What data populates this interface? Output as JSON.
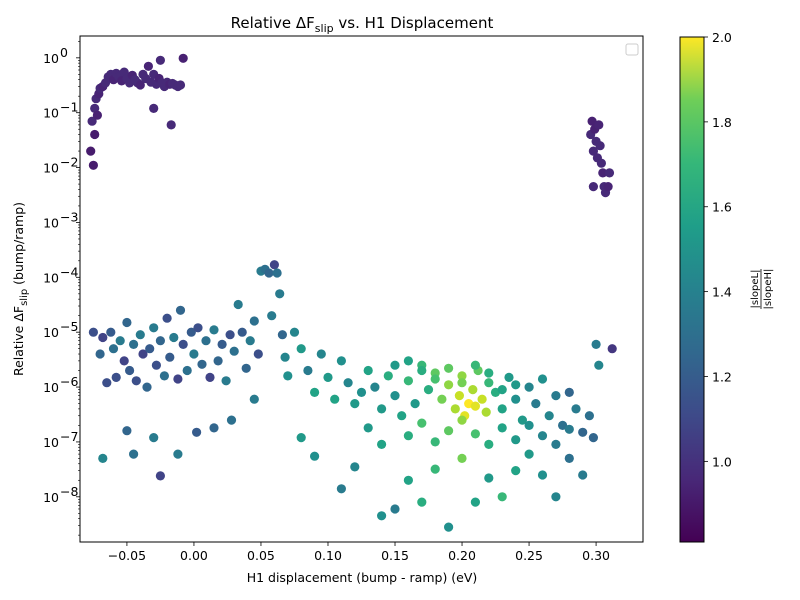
{
  "chart_data": {
    "type": "scatter",
    "title": {
      "prefix": "Relative ΔF",
      "sub": "slip",
      "suffix": " vs. H1 Displacement"
    },
    "xlabel": "H1 displacement (bump - ramp) (eV)",
    "ylabel": {
      "prefix": "Relative ΔF",
      "sub": "slip",
      "suffix": " (bump/ramp)"
    },
    "xlim": [
      -0.085,
      0.335
    ],
    "ylim": [
      1.5e-09,
      2.5
    ],
    "yscale": "log",
    "x_ticks": [
      -0.05,
      0.0,
      0.05,
      0.1,
      0.15,
      0.2,
      0.25,
      0.3
    ],
    "x_tick_labels": [
      "−0.05",
      "0.00",
      "0.05",
      "0.10",
      "0.15",
      "0.20",
      "0.25",
      "0.30"
    ],
    "y_tick_exponents": [
      -8,
      -7,
      -6,
      -5,
      -4,
      -3,
      -2,
      -1,
      0
    ],
    "y_tick_labels": [
      "10",
      "10",
      "10",
      "10",
      "10",
      "10",
      "10",
      "10",
      "10"
    ],
    "y_tick_label_exponents": [
      "−8",
      "−7",
      "−6",
      "−5",
      "−4",
      "−3",
      "−2",
      "−1",
      "0"
    ],
    "legend": {
      "placement": "upper-right",
      "entries": []
    },
    "colorbar": {
      "colormap": "viridis",
      "range": [
        0.81,
        2.0
      ],
      "ticks": [
        1.0,
        1.2,
        1.4,
        1.6,
        1.8,
        2.0
      ],
      "tick_labels": [
        "1.0",
        "1.2",
        "1.4",
        "1.6",
        "1.8",
        "2.0"
      ],
      "label_numerator": "|slopeL|",
      "label_denominator": "|slopeH|"
    },
    "series": [
      {
        "points": [
          [
            -0.077,
            0.02,
            0.9
          ],
          [
            -0.076,
            0.07,
            0.95
          ],
          [
            -0.075,
            0.011,
            0.9
          ],
          [
            -0.074,
            0.04,
            0.9
          ],
          [
            -0.074,
            0.12,
            0.95
          ],
          [
            -0.073,
            0.18,
            0.95
          ],
          [
            -0.072,
            0.09,
            0.92
          ],
          [
            -0.071,
            0.22,
            0.93
          ],
          [
            -0.07,
            0.28,
            0.95
          ],
          [
            -0.068,
            0.3,
            0.93
          ],
          [
            -0.066,
            0.35,
            0.95
          ],
          [
            -0.064,
            0.45,
            0.95
          ],
          [
            -0.062,
            0.5,
            0.95
          ],
          [
            -0.06,
            0.4,
            0.93
          ],
          [
            -0.058,
            0.52,
            0.95
          ],
          [
            -0.056,
            0.45,
            0.95
          ],
          [
            -0.054,
            0.38,
            0.93
          ],
          [
            -0.052,
            0.55,
            0.95
          ],
          [
            -0.05,
            0.42,
            0.95
          ],
          [
            -0.048,
            0.35,
            0.95
          ],
          [
            -0.046,
            0.48,
            0.93
          ],
          [
            -0.044,
            0.4,
            0.95
          ],
          [
            -0.042,
            0.35,
            0.95
          ],
          [
            -0.04,
            0.32,
            0.93
          ],
          [
            -0.038,
            0.5,
            0.95
          ],
          [
            -0.036,
            0.42,
            0.95
          ],
          [
            -0.034,
            0.7,
            0.93
          ],
          [
            -0.032,
            0.36,
            0.95
          ],
          [
            -0.03,
            0.5,
            0.95
          ],
          [
            -0.028,
            0.33,
            0.95
          ],
          [
            -0.026,
            0.42,
            0.93
          ],
          [
            -0.024,
            0.35,
            0.95
          ],
          [
            -0.022,
            0.3,
            0.95
          ],
          [
            -0.02,
            0.36,
            0.95
          ],
          [
            -0.018,
            0.33,
            0.93
          ],
          [
            -0.016,
            0.34,
            0.95
          ],
          [
            -0.014,
            0.32,
            0.95
          ],
          [
            -0.012,
            0.3,
            0.95
          ],
          [
            -0.01,
            0.32,
            0.95
          ],
          [
            -0.008,
            0.98,
            0.92
          ],
          [
            -0.025,
            0.9,
            0.95
          ],
          [
            -0.017,
            0.06,
            0.95
          ],
          [
            -0.03,
            0.12,
            0.95
          ],
          [
            0.296,
            0.04,
            0.95
          ],
          [
            0.297,
            0.07,
            0.92
          ],
          [
            0.298,
            0.02,
            0.95
          ],
          [
            0.299,
            0.05,
            0.92
          ],
          [
            0.3,
            0.03,
            0.95
          ],
          [
            0.301,
            0.015,
            0.95
          ],
          [
            0.302,
            0.06,
            0.93
          ],
          [
            0.303,
            0.025,
            0.95
          ],
          [
            0.304,
            0.012,
            0.95
          ],
          [
            0.305,
            0.008,
            0.93
          ],
          [
            0.306,
            0.0045,
            0.95
          ],
          [
            0.307,
            0.0035,
            0.95
          ],
          [
            0.309,
            0.0045,
            0.93
          ],
          [
            0.31,
            0.008,
            0.95
          ],
          [
            0.298,
            0.0045,
            0.95
          ],
          [
            -0.075,
            1e-05,
            1.1
          ],
          [
            -0.07,
            4e-06,
            1.2
          ],
          [
            -0.068,
            8e-06,
            1.05
          ],
          [
            -0.065,
            1.2e-06,
            1.1
          ],
          [
            -0.062,
            1e-05,
            1.15
          ],
          [
            -0.06,
            5e-06,
            1.25
          ],
          [
            -0.058,
            1.5e-06,
            1.1
          ],
          [
            -0.055,
            7e-06,
            1.3
          ],
          [
            -0.052,
            3e-06,
            1.05
          ],
          [
            -0.05,
            1.5e-05,
            1.2
          ],
          [
            -0.048,
            2e-06,
            1.15
          ],
          [
            -0.045,
            6e-06,
            1.25
          ],
          [
            -0.043,
            1.3e-06,
            1.1
          ],
          [
            -0.04,
            9e-06,
            1.3
          ],
          [
            -0.038,
            4e-06,
            1.05
          ],
          [
            -0.035,
            1e-06,
            1.2
          ],
          [
            -0.033,
            5e-06,
            1.15
          ],
          [
            -0.03,
            1.2e-05,
            1.3
          ],
          [
            -0.028,
            2.5e-06,
            1.1
          ],
          [
            -0.025,
            7e-06,
            1.2
          ],
          [
            -0.022,
            1.6e-06,
            1.25
          ],
          [
            -0.02,
            1.8e-05,
            1.1
          ],
          [
            -0.018,
            3.5e-06,
            1.15
          ],
          [
            -0.015,
            8e-06,
            1.3
          ],
          [
            -0.012,
            1.4e-06,
            1.05
          ],
          [
            -0.01,
            2.5e-05,
            1.2
          ],
          [
            -0.008,
            6e-06,
            1.1
          ],
          [
            -0.005,
            2e-06,
            1.25
          ],
          [
            -0.002,
            1e-05,
            1.15
          ],
          [
            0.0,
            4e-06,
            1.3
          ],
          [
            0.003,
            1.2e-05,
            1.1
          ],
          [
            0.006,
            2.6e-06,
            1.2
          ],
          [
            0.009,
            7e-06,
            1.25
          ],
          [
            0.012,
            1.5e-06,
            1.05
          ],
          [
            0.015,
            1.1e-05,
            1.3
          ],
          [
            0.018,
            3e-06,
            1.2
          ],
          [
            0.021,
            6e-06,
            1.15
          ],
          [
            0.024,
            1.3e-06,
            1.3
          ],
          [
            0.027,
            9e-06,
            1.1
          ],
          [
            0.03,
            4.5e-06,
            1.25
          ],
          [
            0.033,
            3.2e-05,
            1.3
          ],
          [
            0.036,
            1e-05,
            1.15
          ],
          [
            0.039,
            2.2e-06,
            1.2
          ],
          [
            0.042,
            7e-06,
            1.3
          ],
          [
            0.045,
            1.6e-05,
            1.25
          ],
          [
            0.048,
            4e-06,
            1.1
          ],
          [
            0.05,
            0.00013,
            1.3
          ],
          [
            0.053,
            0.00014,
            1.25
          ],
          [
            0.056,
            0.00012,
            1.2
          ],
          [
            0.06,
            0.00017,
            1.05
          ],
          [
            0.062,
            0.00012,
            1.25
          ],
          [
            0.064,
            5e-05,
            1.3
          ],
          [
            0.058,
            2e-05,
            1.3
          ],
          [
            0.066,
            9e-06,
            1.2
          ],
          [
            0.068,
            3.5e-06,
            1.35
          ],
          [
            -0.068,
            5e-08,
            1.35
          ],
          [
            -0.045,
            6e-08,
            1.25
          ],
          [
            -0.025,
            2.4e-08,
            1.05
          ],
          [
            -0.012,
            6e-08,
            1.3
          ],
          [
            0.002,
            1.5e-07,
            1.15
          ],
          [
            0.015,
            1.8e-07,
            1.2
          ],
          [
            0.028,
            2.5e-07,
            1.25
          ],
          [
            0.045,
            6e-07,
            1.3
          ],
          [
            -0.03,
            1.2e-07,
            1.3
          ],
          [
            -0.05,
            1.6e-07,
            1.2
          ],
          [
            0.07,
            1.6e-06,
            1.4
          ],
          [
            0.075,
            1e-05,
            1.35
          ],
          [
            0.08,
            5e-06,
            1.45
          ],
          [
            0.085,
            2e-06,
            1.3
          ],
          [
            0.09,
            8e-07,
            1.5
          ],
          [
            0.095,
            4e-06,
            1.35
          ],
          [
            0.1,
            1.5e-06,
            1.45
          ],
          [
            0.105,
            6e-07,
            1.5
          ],
          [
            0.11,
            3e-06,
            1.4
          ],
          [
            0.115,
            1.2e-06,
            1.35
          ],
          [
            0.12,
            5e-07,
            1.45
          ],
          [
            0.125,
            8e-07,
            1.4
          ],
          [
            0.13,
            2e-06,
            1.5
          ],
          [
            0.135,
            1e-06,
            1.35
          ],
          [
            0.14,
            4e-07,
            1.45
          ],
          [
            0.145,
            1.6e-06,
            1.55
          ],
          [
            0.15,
            7e-07,
            1.4
          ],
          [
            0.155,
            3e-07,
            1.5
          ],
          [
            0.16,
            1.3e-06,
            1.6
          ],
          [
            0.165,
            5e-07,
            1.45
          ],
          [
            0.17,
            2.5e-06,
            1.6
          ],
          [
            0.175,
            9e-07,
            1.55
          ],
          [
            0.18,
            1.8e-06,
            1.7
          ],
          [
            0.185,
            6e-07,
            1.75
          ],
          [
            0.19,
            1.1e-06,
            1.8
          ],
          [
            0.195,
            4e-07,
            1.85
          ],
          [
            0.198,
            7e-07,
            1.9
          ],
          [
            0.2,
            1.6e-06,
            1.8
          ],
          [
            0.202,
            3e-07,
            1.95
          ],
          [
            0.205,
            5e-07,
            2.0
          ],
          [
            0.208,
            9e-07,
            1.85
          ],
          [
            0.21,
            4.5e-07,
            1.95
          ],
          [
            0.212,
            2e-06,
            1.7
          ],
          [
            0.215,
            6e-07,
            1.9
          ],
          [
            0.218,
            3.5e-07,
            1.85
          ],
          [
            0.22,
            1.2e-06,
            1.6
          ],
          [
            0.225,
            8e-07,
            1.55
          ],
          [
            0.23,
            4e-07,
            1.5
          ],
          [
            0.235,
            1.5e-06,
            1.45
          ],
          [
            0.24,
            6e-07,
            1.4
          ],
          [
            0.245,
            2.5e-07,
            1.45
          ],
          [
            0.25,
            1e-06,
            1.35
          ],
          [
            0.255,
            5e-07,
            1.3
          ],
          [
            0.26,
            1.4e-06,
            1.4
          ],
          [
            0.265,
            3e-07,
            1.35
          ],
          [
            0.27,
            7e-07,
            1.3
          ],
          [
            0.275,
            2e-07,
            1.25
          ],
          [
            0.28,
            8e-07,
            1.2
          ],
          [
            0.285,
            4e-07,
            1.3
          ],
          [
            0.29,
            1.5e-07,
            1.2
          ],
          [
            0.295,
            3e-07,
            1.25
          ],
          [
            0.3,
            6e-06,
            1.3
          ],
          [
            0.302,
            2.5e-06,
            1.35
          ],
          [
            0.312,
            5e-06,
            1.0
          ],
          [
            0.298,
            1.2e-07,
            1.2
          ],
          [
            0.08,
            1.2e-07,
            1.45
          ],
          [
            0.09,
            5.5e-08,
            1.4
          ],
          [
            0.11,
            1.4e-08,
            1.3
          ],
          [
            0.12,
            3.5e-08,
            1.35
          ],
          [
            0.14,
            4.5e-09,
            1.4
          ],
          [
            0.15,
            6e-09,
            1.3
          ],
          [
            0.16,
            2e-08,
            1.5
          ],
          [
            0.17,
            8e-09,
            1.55
          ],
          [
            0.18,
            3.2e-08,
            1.6
          ],
          [
            0.19,
            2.8e-09,
            1.4
          ],
          [
            0.2,
            5e-08,
            1.75
          ],
          [
            0.21,
            8e-09,
            1.5
          ],
          [
            0.22,
            2.2e-08,
            1.45
          ],
          [
            0.23,
            1e-08,
            1.6
          ],
          [
            0.24,
            3e-08,
            1.5
          ],
          [
            0.25,
            6e-08,
            1.45
          ],
          [
            0.26,
            2.5e-08,
            1.4
          ],
          [
            0.27,
            1e-08,
            1.35
          ],
          [
            0.28,
            5e-08,
            1.25
          ],
          [
            0.29,
            2.5e-08,
            1.3
          ],
          [
            0.13,
            1.8e-07,
            1.45
          ],
          [
            0.14,
            9e-08,
            1.5
          ],
          [
            0.16,
            1.3e-07,
            1.55
          ],
          [
            0.17,
            2.2e-07,
            1.65
          ],
          [
            0.18,
            1e-07,
            1.6
          ],
          [
            0.19,
            1.6e-07,
            1.7
          ],
          [
            0.2,
            2.5e-07,
            1.8
          ],
          [
            0.21,
            1.4e-07,
            1.65
          ],
          [
            0.22,
            9e-08,
            1.55
          ],
          [
            0.23,
            1.8e-07,
            1.5
          ],
          [
            0.24,
            1.1e-07,
            1.45
          ],
          [
            0.25,
            2e-07,
            1.4
          ],
          [
            0.26,
            1.3e-07,
            1.35
          ],
          [
            0.27,
            9e-08,
            1.3
          ],
          [
            0.28,
            1.7e-07,
            1.3
          ],
          [
            0.15,
            2.5e-06,
            1.45
          ],
          [
            0.16,
            3e-06,
            1.5
          ],
          [
            0.17,
            2e-06,
            1.55
          ],
          [
            0.18,
            1.4e-06,
            1.65
          ],
          [
            0.19,
            2.2e-06,
            1.7
          ],
          [
            0.2,
            1.2e-06,
            1.75
          ],
          [
            0.21,
            2.5e-06,
            1.6
          ],
          [
            0.22,
            1.8e-06,
            1.55
          ],
          [
            0.23,
            9e-07,
            1.5
          ],
          [
            0.24,
            1.1e-06,
            1.45
          ]
        ]
      }
    ]
  }
}
